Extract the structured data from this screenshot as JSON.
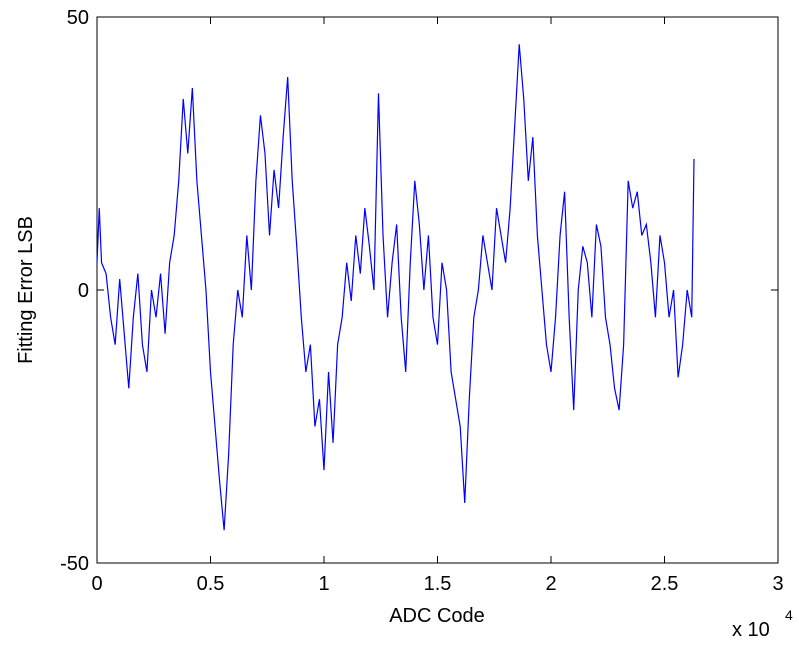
{
  "chart_data": {
    "type": "line",
    "xlabel": "ADC Code",
    "ylabel": "Fitting Error LSB",
    "x_multiplier": {
      "base": "x 10",
      "exponent": "4"
    },
    "x": [
      0,
      100,
      200,
      400,
      600,
      800,
      1000,
      1200,
      1400,
      1600,
      1800,
      2000,
      2200,
      2400,
      2600,
      2800,
      3000,
      3200,
      3400,
      3600,
      3800,
      4000,
      4200,
      4400,
      4600,
      4800,
      5000,
      5200,
      5400,
      5600,
      5800,
      6000,
      6200,
      6400,
      6600,
      6800,
      7000,
      7200,
      7400,
      7600,
      7800,
      8000,
      8200,
      8400,
      8600,
      8800,
      9000,
      9200,
      9400,
      9600,
      9800,
      10000,
      10200,
      10400,
      10600,
      10800,
      11000,
      11200,
      11400,
      11600,
      11800,
      12000,
      12200,
      12400,
      12600,
      12800,
      13000,
      13200,
      13400,
      13600,
      13800,
      14000,
      14200,
      14400,
      14600,
      14800,
      15000,
      15200,
      15400,
      15600,
      15800,
      16000,
      16200,
      16400,
      16600,
      16800,
      17000,
      17200,
      17400,
      17600,
      17800,
      18000,
      18200,
      18400,
      18600,
      18800,
      19000,
      19200,
      19400,
      19600,
      19800,
      20000,
      20200,
      20400,
      20600,
      20800,
      21000,
      21200,
      21400,
      21600,
      21800,
      22000,
      22200,
      22400,
      22600,
      22800,
      23000,
      23200,
      23400,
      23600,
      23800,
      24000,
      24200,
      24400,
      24600,
      24800,
      25000,
      25200,
      25400,
      25600,
      25800,
      26000,
      26200,
      26300
    ],
    "series": [
      {
        "name": "Fitting Error",
        "color": "#0000ff",
        "values": [
          5,
          15,
          5,
          3,
          -5,
          -10,
          2,
          -8,
          -18,
          -5,
          3,
          -10,
          -15,
          0,
          -5,
          3,
          -8,
          5,
          10,
          20,
          35,
          25,
          37,
          20,
          10,
          0,
          -15,
          -25,
          -35,
          -44,
          -30,
          -10,
          0,
          -5,
          10,
          0,
          20,
          32,
          25,
          10,
          22,
          15,
          28,
          39,
          20,
          8,
          -5,
          -15,
          -10,
          -25,
          -20,
          -33,
          -15,
          -28,
          -10,
          -5,
          5,
          -2,
          10,
          3,
          15,
          8,
          0,
          36,
          10,
          -5,
          5,
          12,
          -5,
          -15,
          5,
          20,
          12,
          0,
          10,
          -5,
          -10,
          5,
          0,
          -15,
          -20,
          -25,
          -39,
          -20,
          -5,
          0,
          10,
          5,
          0,
          15,
          10,
          5,
          15,
          30,
          45,
          35,
          20,
          28,
          10,
          0,
          -10,
          -15,
          -5,
          10,
          18,
          -5,
          -22,
          0,
          8,
          5,
          -5,
          12,
          8,
          -5,
          -10,
          -18,
          -22,
          -10,
          20,
          15,
          18,
          10,
          12,
          5,
          -5,
          10,
          5,
          -5,
          0,
          -16,
          -10,
          0,
          -5,
          24
        ]
      }
    ],
    "xlim": [
      0,
      30000
    ],
    "xticks": [
      0,
      {
        "value": 5000,
        "label": "0.5"
      },
      {
        "value": 10000,
        "label": "1"
      },
      {
        "value": 15000,
        "label": "1.5"
      },
      {
        "value": 20000,
        "label": "2"
      },
      {
        "value": 25000,
        "label": "2.5"
      },
      {
        "value": 30000,
        "label": "3"
      }
    ],
    "ylim": [
      -50,
      50
    ],
    "yticks": [
      -50,
      0,
      50
    ],
    "grid": false
  }
}
